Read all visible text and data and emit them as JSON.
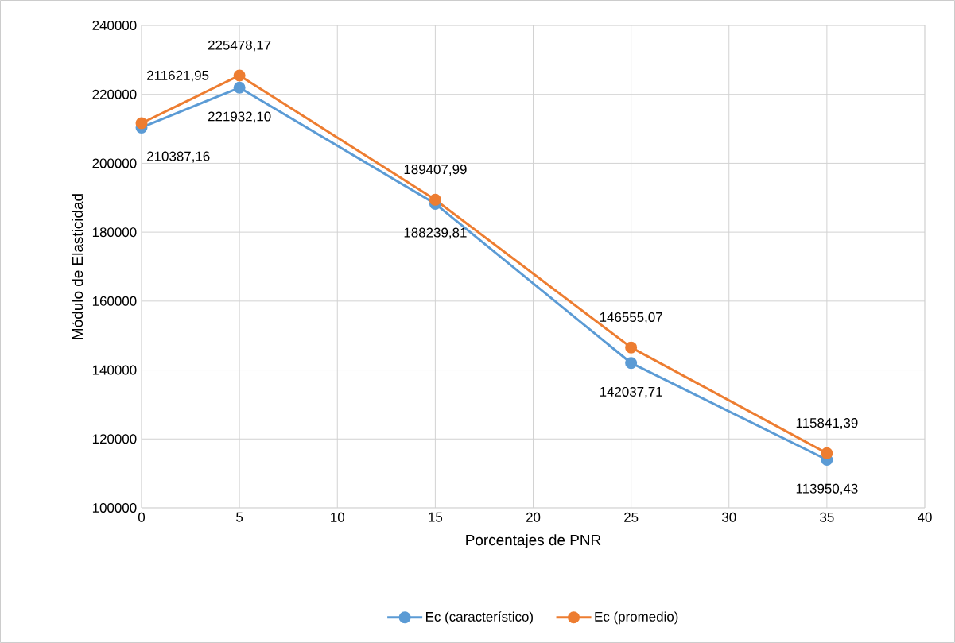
{
  "chart_data": {
    "type": "line",
    "xlabel": "Porcentajes de PNR",
    "ylabel": "Módulo de Elasticidad",
    "x": [
      0,
      5,
      15,
      25,
      35
    ],
    "series": [
      {
        "name": "Ec (característico)",
        "color": "#5b9bd5",
        "values": [
          210387.16,
          221932.1,
          188239.81,
          142037.71,
          113950.43
        ],
        "value_labels": [
          "210387,16",
          "221932,10",
          "188239,81",
          "142037,71",
          "113950,43"
        ]
      },
      {
        "name": "Ec (promedio)",
        "color": "#ed7d31",
        "values": [
          211621.95,
          225478.17,
          189407.99,
          146555.07,
          115841.39
        ],
        "value_labels": [
          "211621,95",
          "225478,17",
          "189407,99",
          "146555,07",
          "115841,39"
        ]
      }
    ],
    "xlim": [
      0,
      40
    ],
    "xticks": [
      0,
      5,
      10,
      15,
      20,
      25,
      30,
      35,
      40
    ],
    "ylim": [
      100000,
      240000
    ],
    "yticks": [
      100000,
      120000,
      140000,
      160000,
      180000,
      200000,
      220000,
      240000
    ],
    "grid": true,
    "legend": "bottom",
    "marker": "circle",
    "line_style": "solid"
  }
}
